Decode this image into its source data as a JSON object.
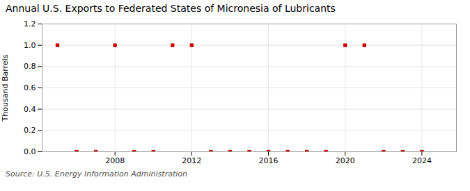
{
  "chart_data": {
    "type": "scatter",
    "title": "Annual U.S. Exports to Federated States of Micronesia of Lubricants",
    "ylabel": "Thousand Barrels",
    "source": "Source: U.S. Energy Information Administration",
    "x": [
      2005,
      2006,
      2007,
      2008,
      2009,
      2010,
      2011,
      2012,
      2013,
      2014,
      2015,
      2016,
      2017,
      2018,
      2019,
      2020,
      2021,
      2022,
      2023,
      2024
    ],
    "values": [
      1.0,
      0.0,
      0.0,
      1.0,
      0.0,
      0.0,
      1.0,
      1.0,
      0.0,
      0.0,
      0.0,
      0.0,
      0.0,
      0.0,
      0.0,
      1.0,
      1.0,
      0.0,
      0.0,
      0.0
    ],
    "color": "#cc0000",
    "marker": "square",
    "xlim": [
      2004.2,
      2025.8
    ],
    "xticks": [
      2008,
      2012,
      2016,
      2020,
      2024
    ],
    "ylim": [
      0.0,
      1.2
    ],
    "yticks": [
      {
        "value": 0.0,
        "label": "0.0"
      },
      0.2,
      0.4,
      0.6,
      0.8,
      {
        "value": 1.0,
        "label": "1.0"
      },
      1.2
    ],
    "grid": true
  }
}
